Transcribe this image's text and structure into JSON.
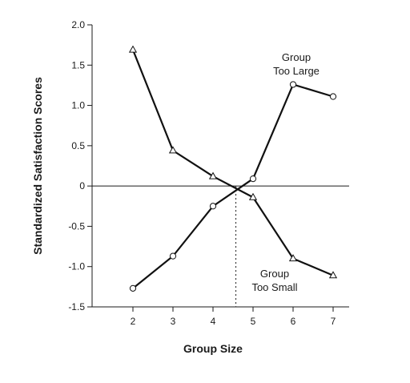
{
  "chart_data": {
    "type": "line",
    "title": "",
    "xlabel": "Group Size",
    "ylabel": "Standardized Satisfaction Scores",
    "xlim": [
      1,
      7.3
    ],
    "ylim": [
      -1.5,
      2.0
    ],
    "x_ticks": [
      2,
      3,
      4,
      5,
      6,
      7
    ],
    "x_tick_labels": [
      "2",
      "3",
      "4",
      "5",
      "6",
      "7"
    ],
    "y_ticks": [
      2.0,
      1.5,
      1.0,
      0.5,
      0,
      -0.5,
      -1.0,
      -1.5
    ],
    "y_tick_labels": [
      "2.0",
      "1.5",
      "1.0",
      "0.5",
      "0",
      "-0.5",
      "-1.0",
      "-1.5"
    ],
    "reference_line_y": 0,
    "crossover_x": 4.57,
    "series": [
      {
        "label_lines": [
          "Group",
          "Too Large"
        ],
        "marker": "circle",
        "x": [
          2,
          3,
          4,
          5,
          6,
          7
        ],
        "values": [
          -1.27,
          -0.87,
          -0.25,
          0.09,
          1.26,
          1.11
        ]
      },
      {
        "label_lines": [
          "Group",
          "Too Small"
        ],
        "marker": "triangle",
        "x": [
          2,
          3,
          4,
          5,
          6,
          7
        ],
        "values": [
          1.69,
          0.44,
          0.12,
          -0.14,
          -0.9,
          -1.11
        ]
      }
    ],
    "grid": false,
    "legend": "none"
  }
}
